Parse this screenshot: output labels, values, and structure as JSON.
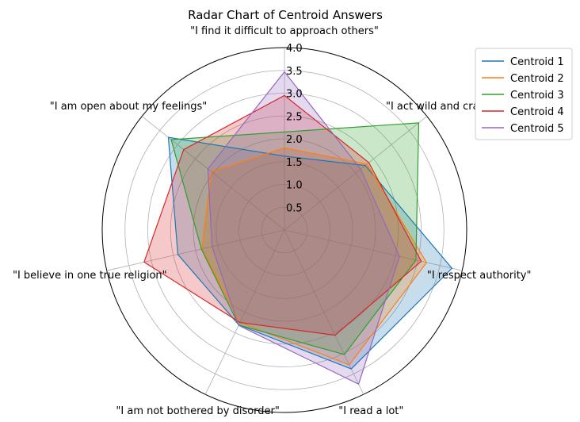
{
  "chart_data": {
    "type": "radar",
    "title": "Radar Chart of Centroid Answers",
    "axes": [
      "\"I find it difficult to approach others\"",
      "\"I act wild and crazy\"",
      "\"I respect authority\"",
      "\"I read a lot\"",
      "\"I am not bothered by disorder\"",
      "\"I believe in one true religion\"",
      "\"I am open about my feelings\""
    ],
    "rlim": [
      0,
      4.0
    ],
    "rticks": [
      "0.5",
      "1.0",
      "1.5",
      "2.0",
      "2.5",
      "3.0",
      "3.5",
      "4.0"
    ],
    "grid": true,
    "legend_position": "top-right",
    "series": [
      {
        "name": "Centroid 1",
        "color": "#1f77b4",
        "values": [
          1.62,
          2.27,
          3.77,
          3.38,
          2.31,
          2.4,
          3.26
        ]
      },
      {
        "name": "Centroid 2",
        "color": "#ff7f0e",
        "values": [
          1.8,
          2.32,
          3.2,
          3.28,
          2.25,
          1.86,
          2.05
        ]
      },
      {
        "name": "Centroid 3",
        "color": "#2ca02c",
        "values": [
          2.15,
          3.77,
          2.96,
          3.03,
          2.31,
          1.87,
          3.18
        ]
      },
      {
        "name": "Centroid 4",
        "color": "#d62728",
        "values": [
          2.95,
          2.37,
          3.08,
          2.56,
          2.25,
          3.16,
          2.83
        ]
      },
      {
        "name": "Centroid 5",
        "color": "#9467bd",
        "values": [
          3.47,
          2.14,
          2.59,
          3.75,
          2.32,
          1.63,
          2.15
        ]
      }
    ]
  }
}
